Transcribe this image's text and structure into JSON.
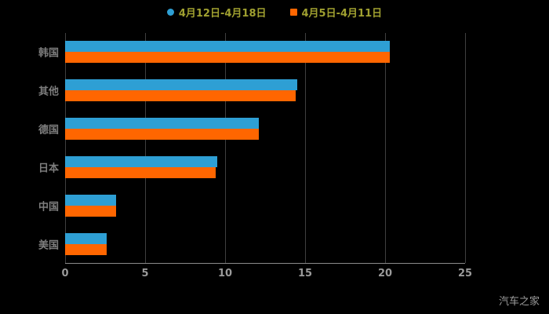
{
  "watermark": "汽车之家",
  "chart_data": {
    "type": "bar",
    "orientation": "horizontal",
    "title": "",
    "xlabel": "",
    "ylabel": "",
    "background": "#000000",
    "grid": true,
    "grid_color": "#3f3f3f",
    "legend_position": "top",
    "legend_text_color": "#a0a030",
    "axis_label_color": "#9a9a9a",
    "category_label_color": "#7d7d7d",
    "categories": [
      "韩国",
      "其他",
      "德国",
      "日本",
      "中国",
      "美国"
    ],
    "series": [
      {
        "name": "4月12日-4月18日",
        "color": "#2e9fd4",
        "marker": "circle",
        "values": [
          20.3,
          14.5,
          12.1,
          9.5,
          3.2,
          2.6
        ]
      },
      {
        "name": "4月5日-4月11日",
        "color": "#ff6600",
        "marker": "square",
        "values": [
          20.3,
          14.4,
          12.1,
          9.4,
          3.2,
          2.6
        ]
      }
    ],
    "xlim": [
      0,
      25
    ],
    "xticks": [
      0,
      5,
      10,
      15,
      20,
      25
    ]
  }
}
